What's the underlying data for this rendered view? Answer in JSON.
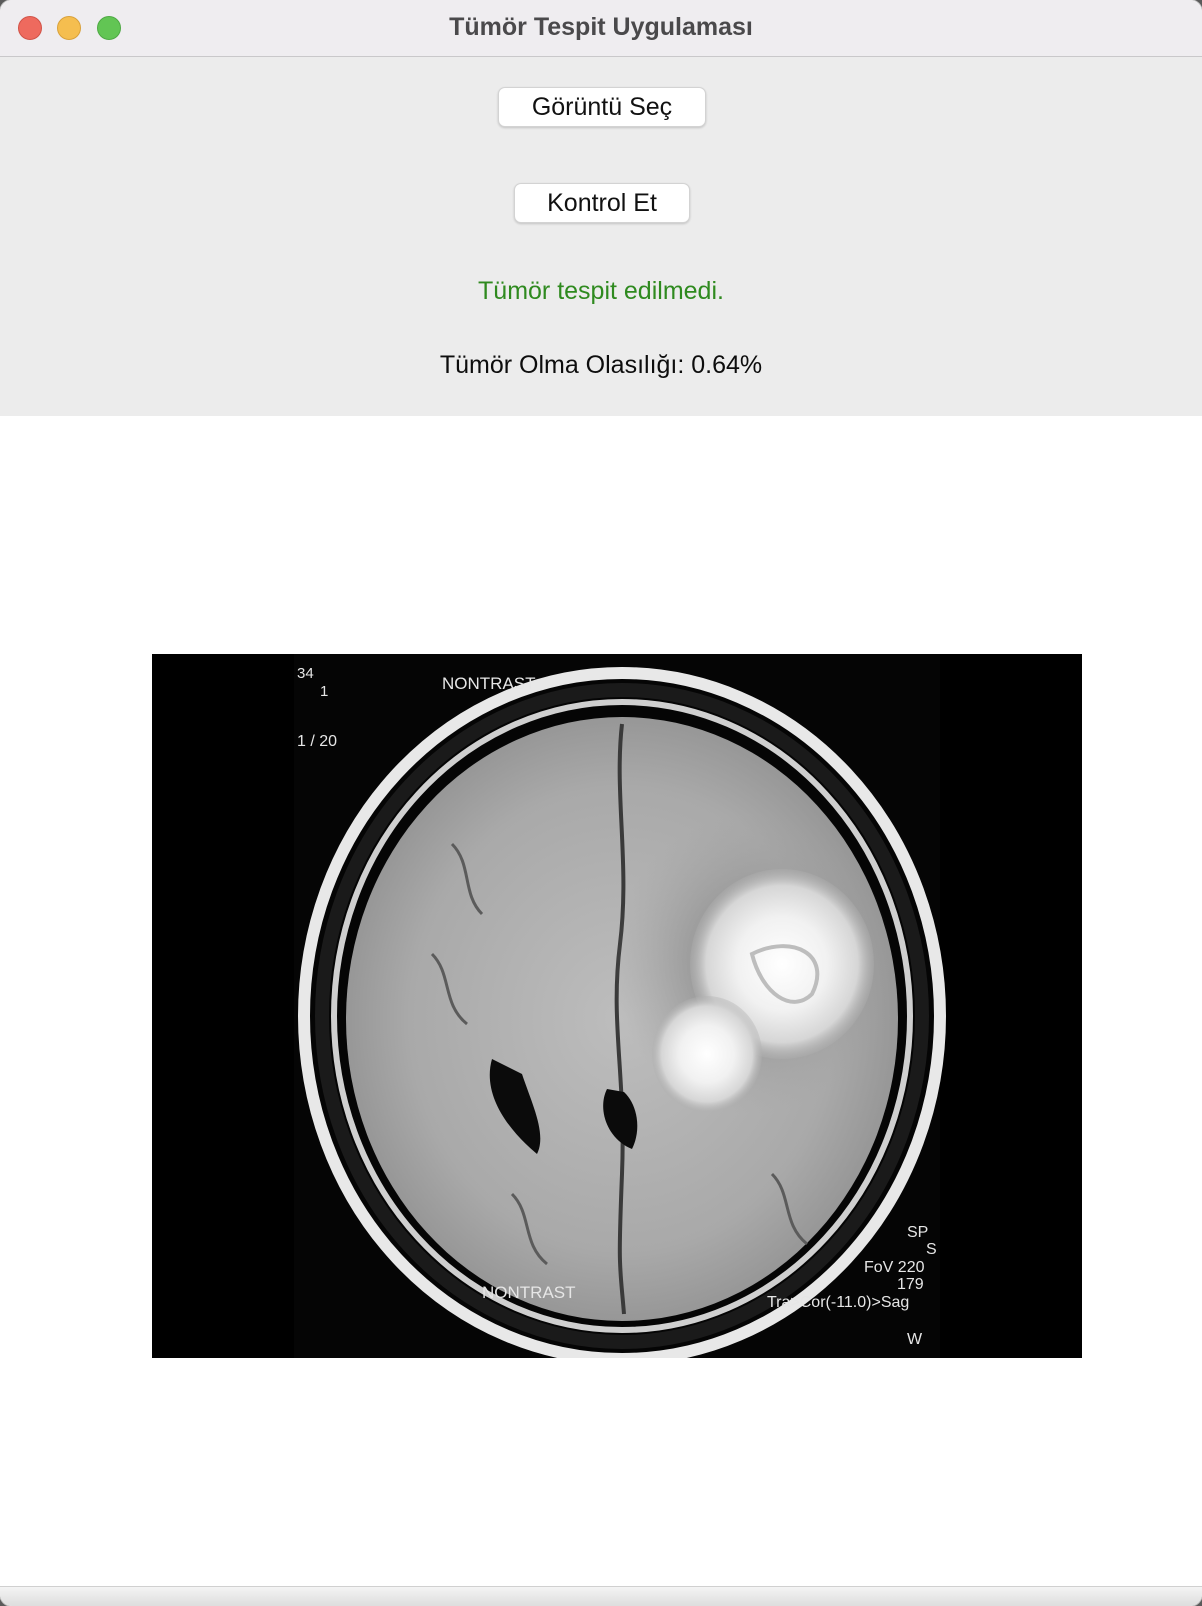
{
  "window": {
    "title": "Tümör Tespit Uygulaması"
  },
  "controls": {
    "select_image_label": "Görüntü Seç",
    "check_label": "Kontrol Et",
    "result_text": "Tümör tespit edilmedi.",
    "probability_text": "Tümör Olma Olasılığı: 0.64%"
  },
  "colors": {
    "result_text": "#2f8a1f",
    "close": "#ee6a5e",
    "minimize": "#f5be4f",
    "zoom": "#62c554"
  },
  "mri_overlay": {
    "top_left_1": "34",
    "top_left_2": "1",
    "slice": "1 / 20",
    "top_label": "NONTRAST",
    "bottom_label": "NONTRAST",
    "right_1": "SP",
    "right_2": "S",
    "right_3": "FoV 220",
    "right_4": "179",
    "right_5": "Tra>Cor(-11.0)>Sag",
    "right_6": "W"
  }
}
